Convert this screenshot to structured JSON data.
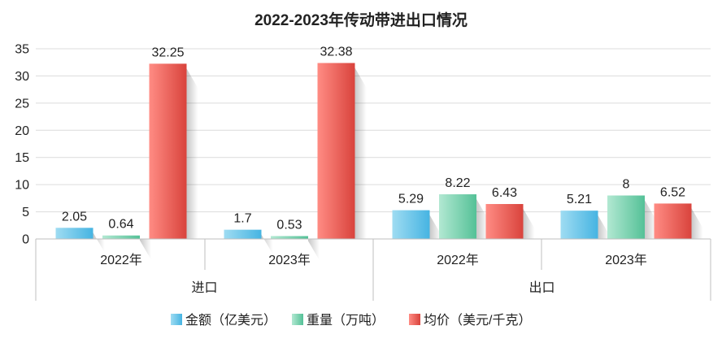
{
  "chart_data": {
    "type": "bar",
    "title": "2022-2023年传动带进出口情况",
    "groups": [
      {
        "name": "进口",
        "categories": [
          "2022年",
          "2023年"
        ]
      },
      {
        "name": "出口",
        "categories": [
          "2022年",
          "2023年"
        ]
      }
    ],
    "series": [
      {
        "name": "金额（亿美元）",
        "values": [
          2.05,
          1.7,
          5.29,
          5.21
        ]
      },
      {
        "name": "重量（万吨）",
        "values": [
          0.64,
          0.53,
          8.22,
          8
        ]
      },
      {
        "name": "均价（美元/千克）",
        "values": [
          32.25,
          32.38,
          6.43,
          6.52
        ]
      }
    ],
    "ylim": [
      0,
      35
    ],
    "yticks": [
      0,
      5,
      10,
      15,
      20,
      25,
      30,
      35
    ],
    "grid": true,
    "legend_position": "bottom",
    "colors": {
      "s0": [
        "#9fdcf2",
        "#46b4e2"
      ],
      "s1": [
        "#b2e8d2",
        "#54c197"
      ],
      "s2": [
        "#ff8c84",
        "#d9433c"
      ],
      "grid": "#dcdcdc",
      "axis": "#bfbfbf",
      "text": "#222222"
    }
  }
}
